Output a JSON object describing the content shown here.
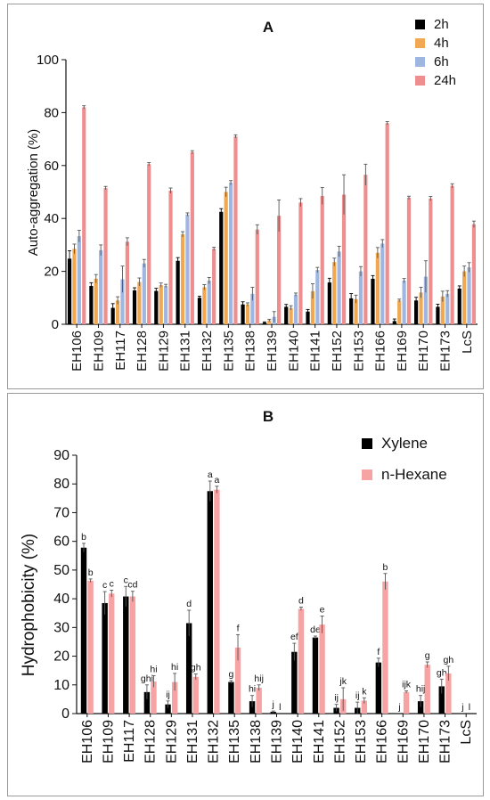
{
  "chart_data": [
    {
      "panel": "A",
      "type": "bar",
      "title": "A",
      "ylabel": "Auto-aggregation (%)",
      "xlabel": "",
      "ylim": [
        0,
        100
      ],
      "yticks": [
        0,
        20,
        40,
        60,
        80,
        100
      ],
      "legend_position": "top-right",
      "categories": [
        "EH106",
        "EH109",
        "EH117",
        "EH128",
        "EH129",
        "EH131",
        "EH132",
        "EH135",
        "EH138",
        "EH139",
        "EH140",
        "EH141",
        "EH152",
        "EH153",
        "EH166",
        "EH169",
        "EH170",
        "EH173",
        "LcS"
      ],
      "series": [
        {
          "name": "2h",
          "color": "#000000",
          "values": [
            24.8,
            14.5,
            6.2,
            12.8,
            12.6,
            24.0,
            10.0,
            42.5,
            7.5,
            0.6,
            6.6,
            4.8,
            15.8,
            9.8,
            17.2,
            1.2,
            9.0,
            6.6,
            13.5
          ],
          "errors": [
            3.0,
            1.2,
            1.6,
            1.0,
            1.0,
            1.2,
            0.6,
            1.2,
            1.0,
            0.3,
            0.9,
            0.8,
            1.6,
            1.8,
            1.2,
            0.8,
            1.2,
            1.0,
            1.0
          ]
        },
        {
          "name": "4h",
          "color": "#f0a852",
          "values": [
            28.5,
            17.2,
            9.0,
            16.0,
            14.8,
            34.0,
            14.0,
            50.0,
            7.5,
            1.5,
            6.2,
            12.5,
            23.5,
            9.5,
            27.0,
            9.0,
            12.0,
            10.5,
            20.0
          ],
          "errors": [
            1.8,
            1.6,
            1.4,
            1.5,
            0.8,
            1.0,
            1.0,
            1.8,
            0.6,
            0.4,
            0.8,
            2.8,
            1.5,
            1.5,
            2.0,
            0.5,
            2.0,
            2.0,
            2.0
          ]
        },
        {
          "name": "6h",
          "color": "#9fb6e0",
          "values": [
            33.3,
            28.0,
            17.0,
            23.0,
            14.5,
            41.5,
            16.5,
            53.5,
            11.5,
            2.8,
            11.2,
            20.5,
            27.5,
            20.0,
            30.5,
            16.5,
            18.0,
            11.5,
            21.5
          ],
          "errors": [
            2.2,
            2.0,
            5.0,
            1.5,
            0.6,
            0.6,
            1.2,
            0.8,
            2.5,
            2.0,
            0.6,
            1.0,
            2.0,
            1.8,
            1.5,
            0.8,
            6.0,
            1.2,
            1.8
          ]
        },
        {
          "name": "24h",
          "color": "#ee8e8e",
          "values": [
            82.0,
            51.5,
            31.2,
            60.5,
            50.5,
            65.0,
            28.5,
            71.0,
            35.8,
            41.0,
            46.0,
            48.5,
            49.0,
            56.5,
            76.0,
            47.8,
            47.5,
            52.3,
            37.8
          ],
          "errors": [
            0.6,
            0.6,
            1.5,
            0.6,
            1.0,
            0.6,
            0.6,
            0.6,
            1.8,
            6.0,
            1.5,
            3.2,
            7.5,
            4.0,
            0.6,
            0.6,
            0.8,
            0.8,
            1.2
          ]
        }
      ]
    },
    {
      "panel": "B",
      "type": "bar",
      "title": "B",
      "ylabel": "Hydrophobicity (%)",
      "xlabel": "",
      "ylim": [
        0,
        90
      ],
      "yticks": [
        0,
        10,
        20,
        30,
        40,
        50,
        60,
        70,
        80,
        90
      ],
      "legend_position": "top-right",
      "categories": [
        "EH106",
        "EH109",
        "EH117",
        "EH128",
        "EH129",
        "EH131",
        "EH132",
        "EH135",
        "EH138",
        "EH139",
        "EH140",
        "EH141",
        "EH152",
        "EH153",
        "EH166",
        "EH169",
        "EH170",
        "EH173",
        "LcS"
      ],
      "series": [
        {
          "name": "Xylene",
          "color": "#000000",
          "values": [
            57.8,
            38.5,
            40.8,
            7.5,
            3.2,
            31.5,
            77.5,
            11.0,
            4.3,
            0.6,
            21.5,
            26.5,
            2.0,
            2.0,
            17.8,
            0.0,
            4.3,
            9.5,
            0.0
          ],
          "errors": [
            1.5,
            4.0,
            3.5,
            2.5,
            1.2,
            4.5,
            3.5,
            0.5,
            2.0,
            0.3,
            3.0,
            0.5,
            1.2,
            2.0,
            1.5,
            0,
            2.0,
            2.5,
            0
          ],
          "labels": [
            "b",
            "c",
            "c",
            "ghi",
            "ij",
            "d",
            "a",
            "g",
            "hi",
            "j",
            "ef",
            "de",
            "ij",
            "ij",
            "f",
            "j",
            "hij",
            "gh",
            "j"
          ]
        },
        {
          "name": "n-Hexane",
          "color": "#f7a3a3",
          "values": [
            46.3,
            41.8,
            40.8,
            11.2,
            11.0,
            12.8,
            78.0,
            23.0,
            9.0,
            0.0,
            36.5,
            31.0,
            5.0,
            4.5,
            46.0,
            7.5,
            17.0,
            14.0,
            0.0
          ],
          "errors": [
            0.6,
            1.2,
            1.8,
            2.0,
            3.0,
            1.0,
            1.2,
            4.5,
            1.0,
            0,
            0.6,
            3.0,
            4.0,
            1.0,
            2.8,
            0.4,
            1.0,
            2.5,
            0
          ],
          "labels": [
            "b",
            "c",
            "cd",
            "hi",
            "hi",
            "gh",
            "a",
            "f",
            "hij",
            "l",
            "d",
            "e",
            "jk",
            "k",
            "b",
            "ijk",
            "g",
            "gh",
            "l"
          ]
        }
      ]
    }
  ]
}
